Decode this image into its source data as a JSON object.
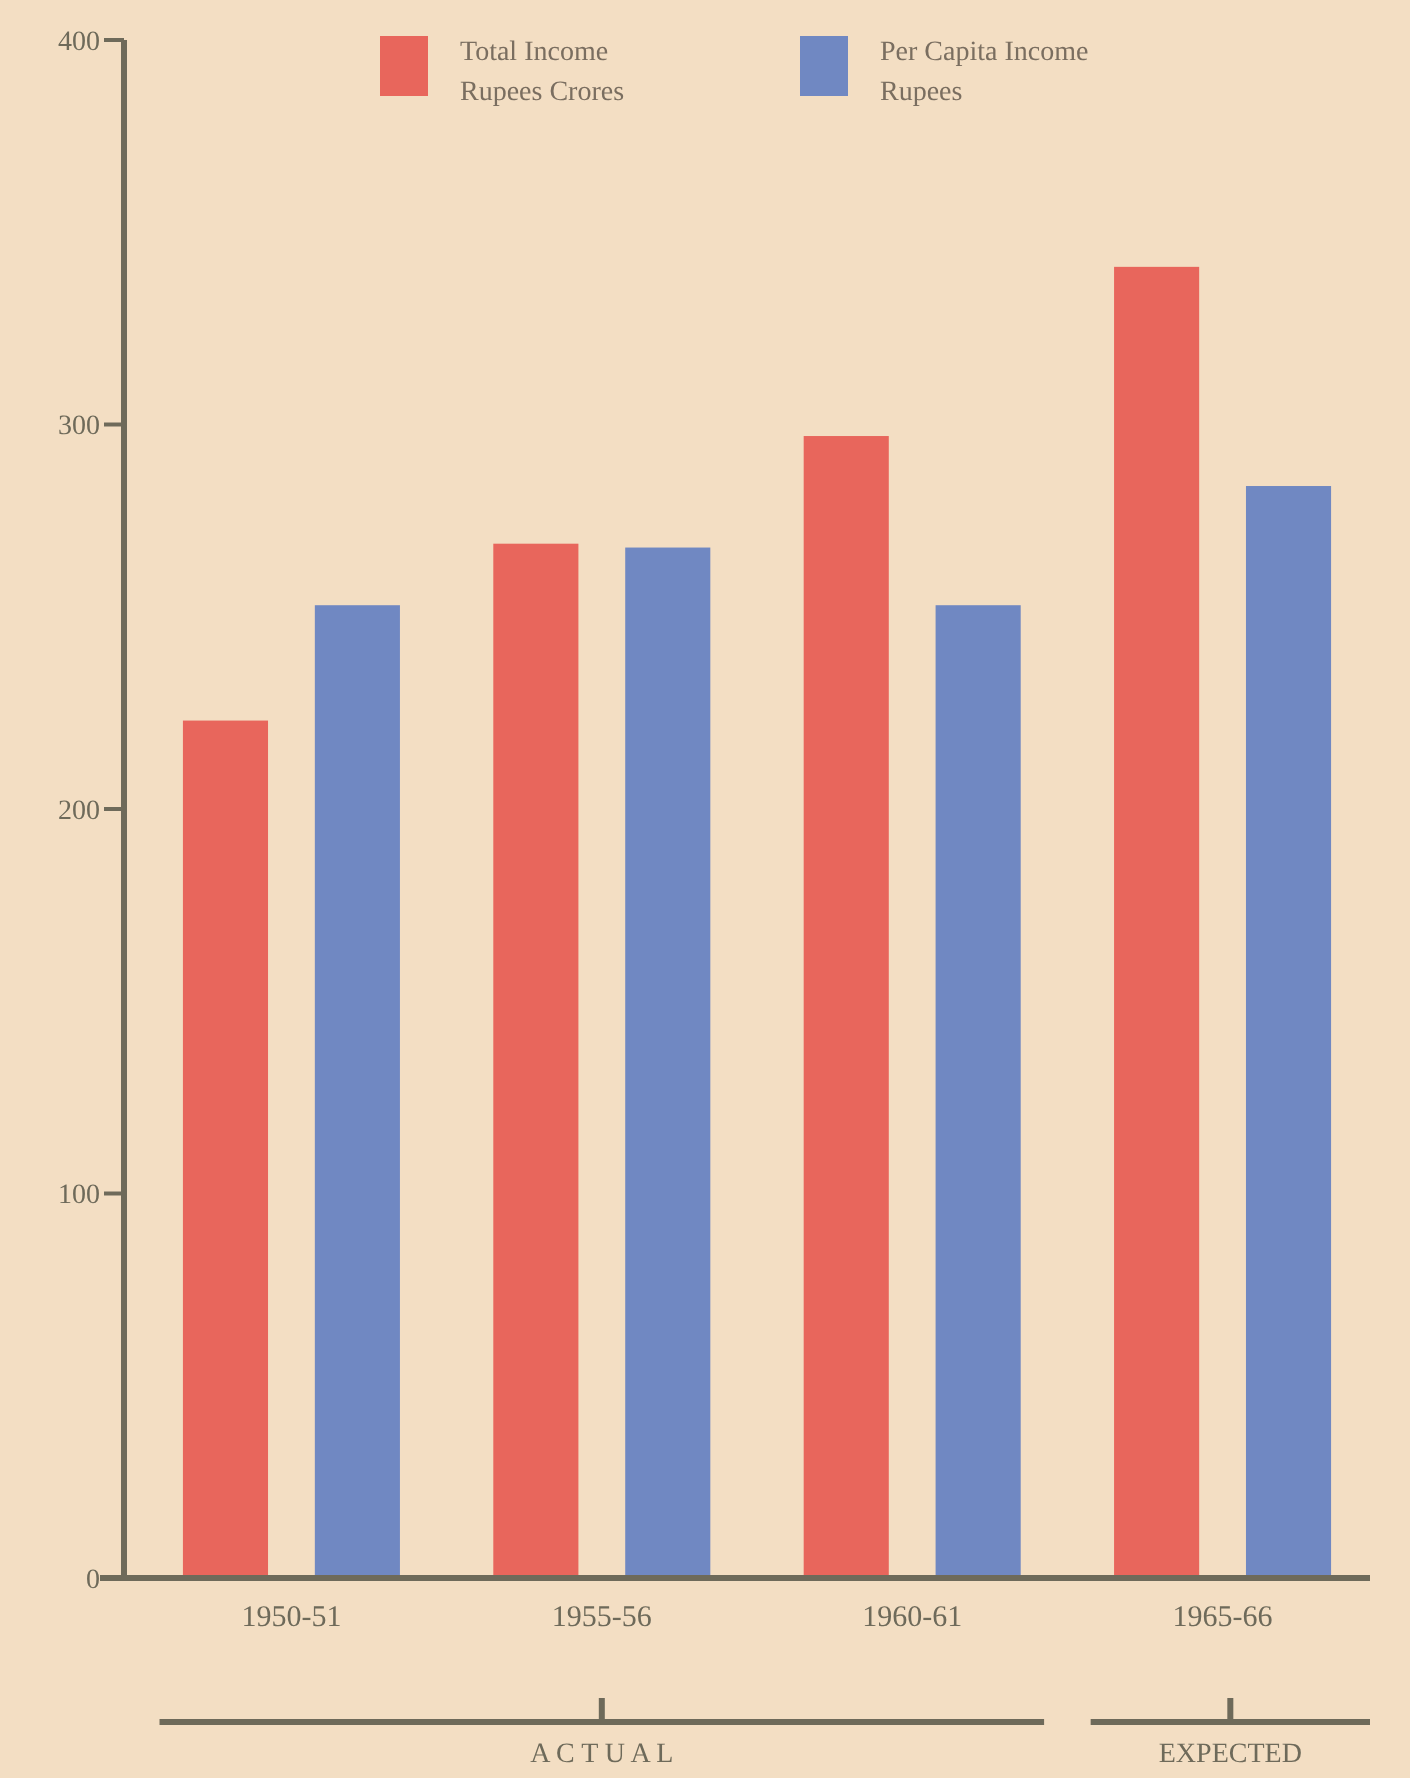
{
  "chart_data": {
    "type": "bar",
    "categories": [
      "1950-51",
      "1955-56",
      "1960-61",
      "1965-66"
    ],
    "series": [
      {
        "name": "Total Income\nRupees Crores",
        "color": "#e8665c",
        "values": [
          223,
          269,
          297,
          341
        ]
      },
      {
        "name": "Per Capita Income\nRupees",
        "color": "#7088c2",
        "values": [
          253,
          268,
          253,
          284
        ]
      }
    ],
    "ylim": [
      0,
      400
    ],
    "yticks": [
      0,
      100,
      200,
      300,
      400
    ],
    "grid": false,
    "legend": "top",
    "annotations": [
      "A C T U A L",
      "EXPECTED"
    ]
  }
}
